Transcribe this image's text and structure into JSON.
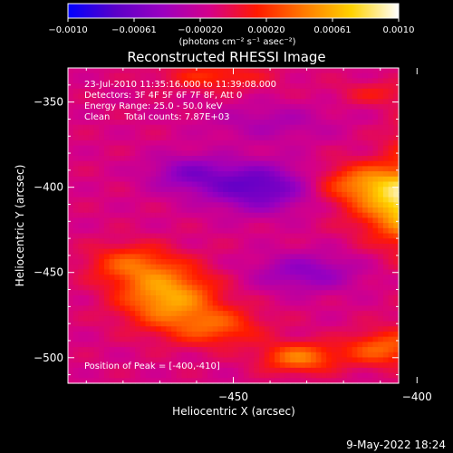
{
  "chart_data": {
    "type": "heatmap",
    "title": "Reconstructed RHESSI Image",
    "xlabel": "Heliocentric X (arcsec)",
    "ylabel": "Heliocentric Y (arcsec)",
    "xlim": [
      -495,
      -405
    ],
    "ylim": [
      -515,
      -330
    ],
    "x_ticks": [
      -450,
      -400,
      -350
    ],
    "x_tick_labels": [
      "−450",
      "−400",
      "−350"
    ],
    "y_ticks": [
      -350,
      -400,
      -450,
      -500
    ],
    "y_tick_labels": [
      "−350",
      "−400",
      "−450",
      "−500"
    ],
    "colorbar": {
      "range": [
        -0.001,
        0.001
      ],
      "tick_labels": [
        "−0.0010",
        "−0.00061",
        "−0.00020",
        "0.00020",
        "0.00061",
        "0.0010"
      ],
      "label": "(photons cm⁻² s⁻¹ asec⁻²)",
      "colors": [
        "#0000ff",
        "#5a00c8",
        "#9b00c0",
        "#d4008a",
        "#ff1a00",
        "#ff7a00",
        "#ffd200",
        "#ffffff"
      ]
    },
    "annotations": [
      "23-Jul-2010 11:35:16.000 to 11:39:08.000",
      "Detectors: 3F 4F 5F 6F 7F 8F, Att 0",
      "Energy Range: 25.0 - 50.0 keV",
      "Clean     Total counts: 7.87E+03"
    ],
    "peak_label": "Position of Peak = [-400,-410]",
    "sources": [
      {
        "x": -400,
        "y": -410,
        "amp": 1.0,
        "sx": 10,
        "sy": 14
      },
      {
        "x": -393,
        "y": -372,
        "amp": 0.55,
        "sx": 8,
        "sy": 10
      },
      {
        "x": -415,
        "y": -398,
        "amp": 0.45,
        "sx": 9,
        "sy": 8
      },
      {
        "x": -386,
        "y": -440,
        "amp": 0.35,
        "sx": 11,
        "sy": 12
      },
      {
        "x": -468,
        "y": -464,
        "amp": 0.7,
        "sx": 9,
        "sy": 12
      },
      {
        "x": -478,
        "y": -445,
        "amp": 0.4,
        "sx": 8,
        "sy": 8
      },
      {
        "x": -455,
        "y": -482,
        "amp": 0.4,
        "sx": 9,
        "sy": 8
      },
      {
        "x": -432,
        "y": -500,
        "amp": 0.55,
        "sx": 7,
        "sy": 6
      },
      {
        "x": -410,
        "y": -495,
        "amp": 0.45,
        "sx": 7,
        "sy": 7
      },
      {
        "x": -390,
        "y": -485,
        "amp": 0.4,
        "sx": 9,
        "sy": 10
      },
      {
        "x": -336,
        "y": -465,
        "amp": 0.55,
        "sx": 7,
        "sy": 14
      },
      {
        "x": -320,
        "y": -495,
        "amp": 0.45,
        "sx": 7,
        "sy": 8
      },
      {
        "x": -455,
        "y": -335,
        "amp": 0.3,
        "sx": 10,
        "sy": 6
      },
      {
        "x": -410,
        "y": -345,
        "amp": 0.2,
        "sx": 8,
        "sy": 5
      },
      {
        "x": -350,
        "y": -415,
        "amp": 0.25,
        "sx": 6,
        "sy": 18
      }
    ],
    "negative_regions": [
      {
        "x": -443,
        "y": -400,
        "amp": 0.55,
        "sx": 10,
        "sy": 10
      },
      {
        "x": -462,
        "y": -392,
        "amp": 0.35,
        "sx": 8,
        "sy": 8
      },
      {
        "x": -330,
        "y": -395,
        "amp": 0.45,
        "sx": 10,
        "sy": 14
      },
      {
        "x": -430,
        "y": -450,
        "amp": 0.35,
        "sx": 10,
        "sy": 8
      },
      {
        "x": -440,
        "y": -362,
        "amp": 0.2,
        "sx": 12,
        "sy": 8
      },
      {
        "x": -360,
        "y": -350,
        "amp": 0.25,
        "sx": 10,
        "sy": 8
      }
    ]
  },
  "footer": {
    "date": "9-May-2022 18:24"
  }
}
